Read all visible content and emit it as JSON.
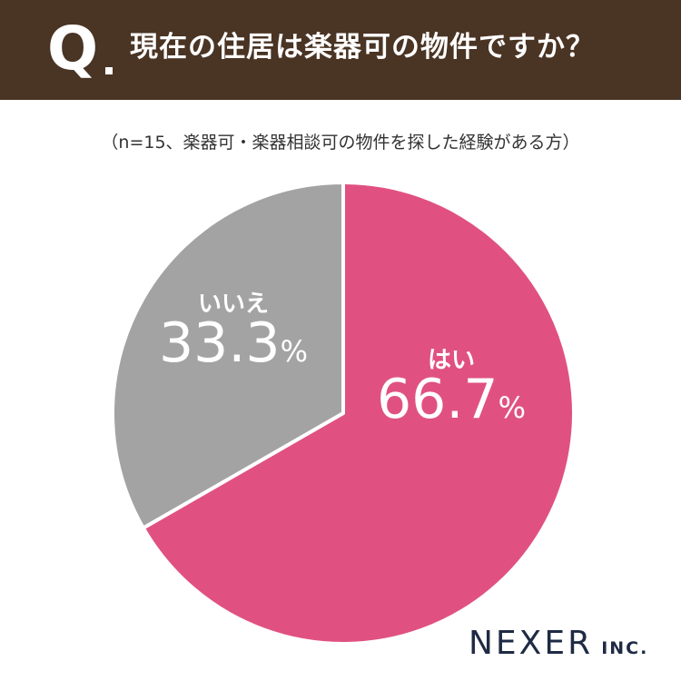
{
  "header": {
    "q_mark": "Q",
    "question": "現在の住居は楽器可の物件ですか？"
  },
  "subtitle": "（n=15、楽器可・楽器相談可の物件を探した経験がある方）",
  "brand": {
    "name": "NEXER",
    "suffix": "INC."
  },
  "colors": {
    "header_bg": "#4a3424",
    "yes": "#e05181",
    "no": "#a3a3a3",
    "label": "#ffffff"
  },
  "chart_data": {
    "type": "pie",
    "title": "現在の住居は楽器可の物件ですか？",
    "categories": [
      "はい",
      "いいえ"
    ],
    "values": [
      66.7,
      33.3
    ],
    "value_labels": [
      "66.7",
      "33.3"
    ],
    "unit": "%",
    "colors": [
      "#e05181",
      "#a3a3a3"
    ]
  }
}
